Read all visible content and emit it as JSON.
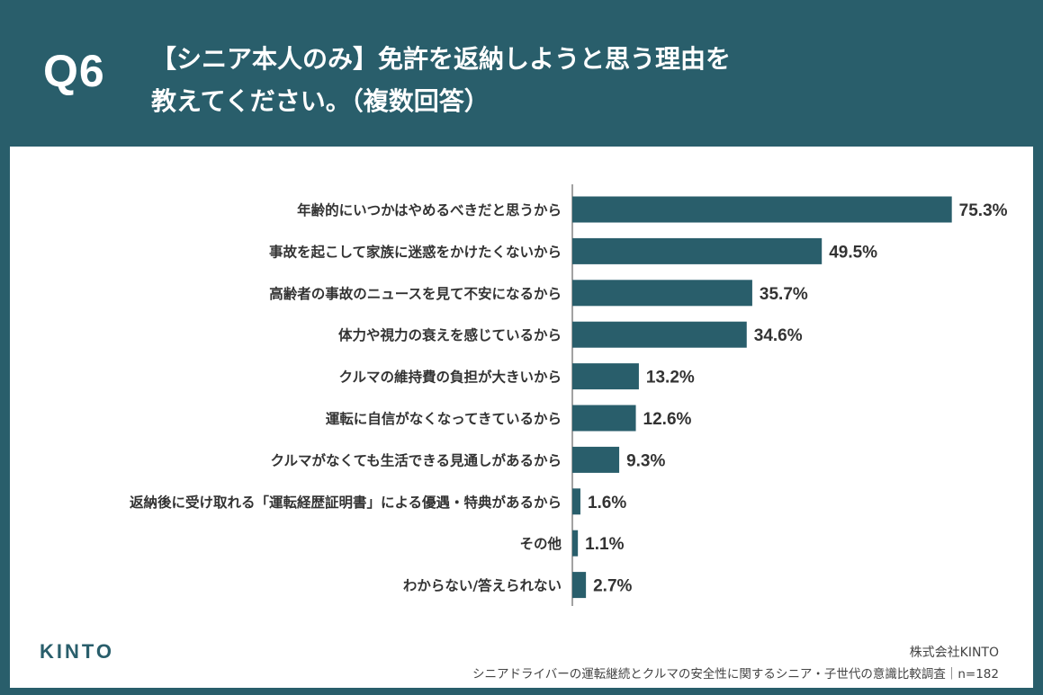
{
  "header": {
    "question_number": "Q6",
    "question_line1": "【シニア本人のみ】免許を返納しようと思う理由を",
    "question_line2": "教えてください。（複数回答）"
  },
  "footer": {
    "logo": "KINTO",
    "company": "株式会社KINTO",
    "source": "シニアドライバーの運転継続とクルマの安全性に関するシニア・子世代の意識比較調査｜n=182"
  },
  "colors": {
    "accent": "#295e6b",
    "bar": "#295e6b",
    "text": "#333333",
    "background": "#ffffff"
  },
  "chart_data": {
    "type": "bar",
    "orientation": "horizontal",
    "categories": [
      "年齢的にいつかはやめるべきだと思うから",
      "事故を起こして家族に迷惑をかけたくないから",
      "高齢者の事故のニュースを見て不安になるから",
      "体力や視力の衰えを感じているから",
      "クルマの維持費の負担が大きいから",
      "運転に自信がなくなってきているから",
      "クルマがなくても生活できる見通しがあるから",
      "返納後に受け取れる「運転経歴証明書」による優遇・特典があるから",
      "その他",
      "わからない/答えられない"
    ],
    "values": [
      75.3,
      49.5,
      35.7,
      34.6,
      13.2,
      12.6,
      9.3,
      1.6,
      1.1,
      2.7
    ],
    "value_labels": [
      "75.3%",
      "49.5%",
      "35.7%",
      "34.6%",
      "13.2%",
      "12.6%",
      "9.3%",
      "1.6%",
      "1.1%",
      "2.7%"
    ],
    "unit": "%",
    "xlim": [
      0,
      100
    ],
    "grid": false,
    "legend": "none"
  }
}
